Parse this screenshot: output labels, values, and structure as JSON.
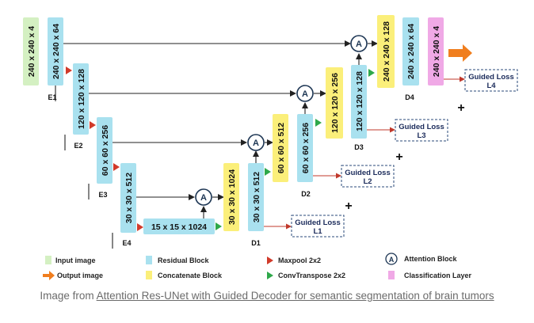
{
  "colors": {
    "input": "#d4f0c2",
    "residual": "#a9e1ef",
    "concat": "#fbef7a",
    "classification": "#f0a9e6",
    "maxpool": "#d13a2a",
    "convtranspose": "#2ea84a",
    "output_arrow": "#f07e1e",
    "attention_stroke": "#1c3553",
    "guided_stroke": "#2a4a7a"
  },
  "blocks": {
    "input": "240 x 240 x 4",
    "e1": "240 x 240 x 64",
    "e2": "120 x 120 x 128",
    "e3": "60 x 60 x 256",
    "e4": "30 x 30 x 512",
    "bottleneck": "15 x 15 x 1024",
    "d1_concat": "30 x 30 x 1024",
    "d1_res": "30 x 30 x 512",
    "d2_concat": "60 x 60 x 512",
    "d2_res": "60 x 60 x 256",
    "d3_concat": "120 x 120 x 256",
    "d3_res": "120 x 120 x 128",
    "d4_concat": "240 x 240 x 128",
    "d4_res": "240 x 240 x 64",
    "classification": "240 x 240 x 4"
  },
  "labels": {
    "e1": "E1",
    "e2": "E2",
    "e3": "E3",
    "e4": "E4",
    "d1": "D1",
    "d2": "D2",
    "d3": "D3",
    "d4": "D4"
  },
  "attention_symbol": "A",
  "guided_losses": [
    {
      "title": "Guided Loss",
      "sub": "L1"
    },
    {
      "title": "Guided Loss",
      "sub": "L2"
    },
    {
      "title": "Guided Loss",
      "sub": "L3"
    },
    {
      "title": "Guided Loss",
      "sub": "L4"
    }
  ],
  "plus_sign": "+",
  "legend": {
    "input_image": "Input image",
    "output_image": "Output image",
    "residual_block": "Residual Block",
    "concatenate_block": "Concatenate Block",
    "maxpool": "Maxpool 2x2",
    "convtranspose": "ConvTranspose 2x2",
    "attention_block": "Attention Block",
    "classification_layer": "Classification Layer"
  },
  "caption": {
    "prefix": "Image from ",
    "link": "Attention Res-UNet with Guided Decoder for semantic segmentation of brain tumors"
  }
}
